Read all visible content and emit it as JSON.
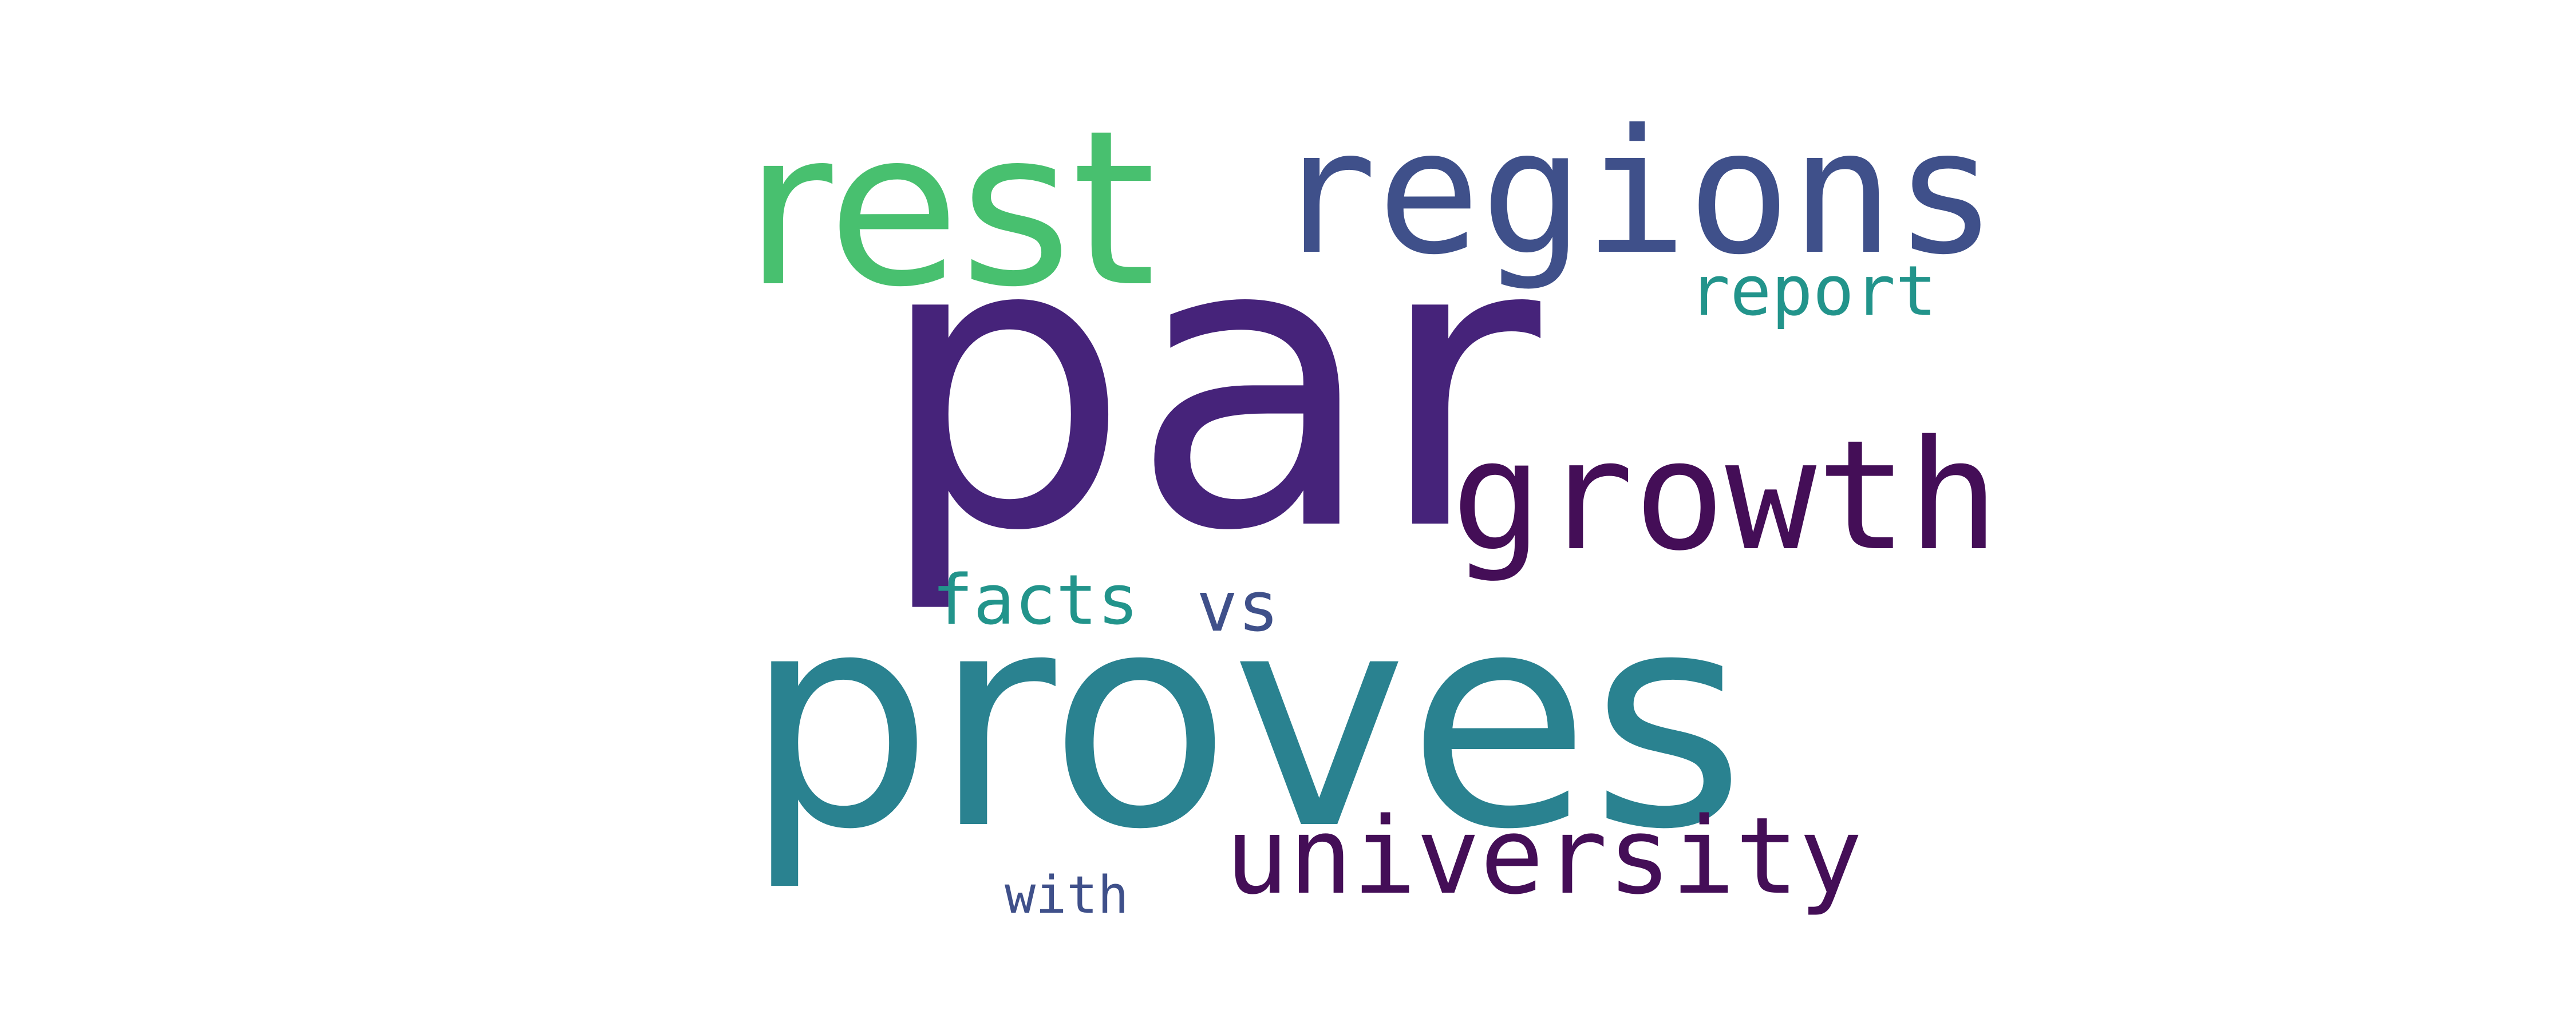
{
  "words": [
    {
      "text": "par",
      "color": "#46237a"
    },
    {
      "text": "proves",
      "color": "#2a8290"
    },
    {
      "text": "rest",
      "color": "#48c06f"
    },
    {
      "text": "regions",
      "color": "#3f508a"
    },
    {
      "text": "growth",
      "color": "#440e57"
    },
    {
      "text": "university",
      "color": "#440e57"
    },
    {
      "text": "report",
      "color": "#22948b"
    },
    {
      "text": "facts",
      "color": "#22948b"
    },
    {
      "text": "vs",
      "color": "#3f508a"
    },
    {
      "text": "with",
      "color": "#3f508a"
    }
  ]
}
